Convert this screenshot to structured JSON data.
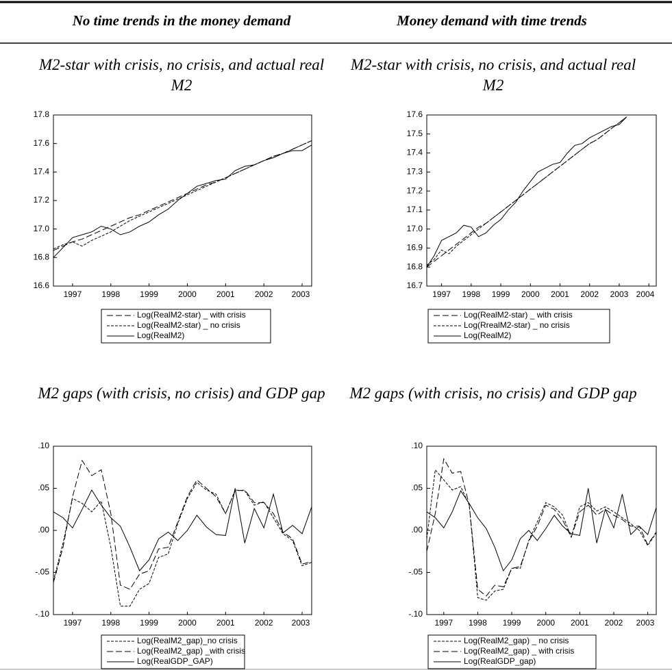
{
  "table": {
    "headers": [
      "No time trends in the money demand",
      "Money demand with time trends"
    ]
  },
  "chart_data": [
    {
      "type": "line",
      "title": "M2-star with crisis, no crisis, and actual real M2",
      "x": [
        1997,
        1997.25,
        1997.5,
        1997.75,
        1998,
        1998.25,
        1998.5,
        1998.75,
        1999,
        1999.25,
        1999.5,
        1999.75,
        2000,
        2000.25,
        2000.5,
        2000.75,
        2001,
        2001.25,
        2001.5,
        2001.75,
        2002,
        2002.25,
        2002.5,
        2002.75,
        2003,
        2003.25,
        2003.5,
        2003.75
      ],
      "xlim": [
        1997,
        2003.75
      ],
      "xticks": [
        {
          "value": 1997.5,
          "label": "1997"
        },
        {
          "value": 1998.5,
          "label": "1998"
        },
        {
          "value": 1999.5,
          "label": "1999"
        },
        {
          "value": 2000.5,
          "label": "2000"
        },
        {
          "value": 2001.5,
          "label": "2001"
        },
        {
          "value": 2002.5,
          "label": "2002"
        },
        {
          "value": 2003.5,
          "label": "2003"
        }
      ],
      "ylim": [
        16.6,
        17.8
      ],
      "yticks": [
        16.6,
        16.8,
        {
          "value": 17,
          "label": "17.0"
        },
        17.2,
        17.4,
        17.6,
        17.8
      ],
      "series": [
        {
          "name": "Log(RealM2-star) _ with crisis",
          "color": "#000000",
          "dash": "long",
          "values": [
            16.85,
            16.88,
            16.91,
            16.93,
            16.96,
            16.99,
            17.02,
            17.05,
            17.08,
            17.1,
            17.13,
            17.16,
            17.19,
            17.22,
            17.25,
            17.28,
            17.31,
            17.33,
            17.36,
            17.39,
            17.42,
            17.45,
            17.48,
            17.51,
            17.53,
            17.56,
            17.59,
            17.62
          ]
        },
        {
          "name": "Log(RealM2-star) _ no crisis",
          "color": "#000000",
          "dash": "short",
          "values": [
            16.86,
            16.89,
            16.91,
            16.88,
            16.92,
            16.95,
            16.98,
            17.02,
            17.06,
            17.09,
            17.12,
            17.15,
            17.18,
            17.21,
            17.24,
            17.27,
            17.3,
            17.33,
            17.36,
            17.39,
            17.42,
            17.45,
            17.48,
            17.51,
            17.53,
            17.56,
            17.59,
            17.62
          ]
        },
        {
          "name": "Log(RealM2)",
          "color": "#000000",
          "dash": "solid",
          "values": [
            16.8,
            16.87,
            16.94,
            16.96,
            16.98,
            17.02,
            17.0,
            16.96,
            16.98,
            17.02,
            17.05,
            17.1,
            17.14,
            17.2,
            17.25,
            17.3,
            17.32,
            17.34,
            17.35,
            17.41,
            17.44,
            17.45,
            17.48,
            17.5,
            17.53,
            17.55,
            17.55,
            17.59
          ]
        }
      ]
    },
    {
      "type": "line",
      "title": "M2-star with crisis, no crisis, and actual real M2",
      "x": [
        1997,
        1997.25,
        1997.5,
        1997.75,
        1998,
        1998.25,
        1998.5,
        1998.75,
        1999,
        1999.25,
        1999.5,
        1999.75,
        2000,
        2000.25,
        2000.5,
        2000.75,
        2001,
        2001.25,
        2001.5,
        2001.75,
        2002,
        2002.25,
        2002.5,
        2002.75,
        2003,
        2003.25,
        2003.5,
        2003.75
      ],
      "xlim": [
        1997,
        2004.75
      ],
      "xticks": [
        {
          "value": 1997.5,
          "label": "1997"
        },
        {
          "value": 1998.5,
          "label": "1998"
        },
        {
          "value": 1999.5,
          "label": "1999"
        },
        {
          "value": 2000.5,
          "label": "2000"
        },
        {
          "value": 2001.5,
          "label": "2001"
        },
        {
          "value": 2002.5,
          "label": "2002"
        },
        {
          "value": 2003.5,
          "label": "2003"
        },
        {
          "value": 2004.5,
          "label": "2004"
        }
      ],
      "ylim": [
        16.7,
        17.6
      ],
      "yticks": [
        16.7,
        16.8,
        16.9,
        {
          "value": 17,
          "label": "17.0"
        },
        17.1,
        17.2,
        17.3,
        17.4,
        17.5,
        17.6
      ],
      "series": [
        {
          "name": "Log(RealM2-star) _  with crisis",
          "color": "#000000",
          "dash": "long",
          "values": [
            16.8,
            16.83,
            16.86,
            16.89,
            16.92,
            16.95,
            16.98,
            17.01,
            17.03,
            17.06,
            17.09,
            17.12,
            17.15,
            17.18,
            17.21,
            17.24,
            17.27,
            17.3,
            17.33,
            17.36,
            17.39,
            17.42,
            17.45,
            17.47,
            17.5,
            17.53,
            17.56,
            17.59
          ]
        },
        {
          "name": "Log(RrealM2-star) _ no crisis",
          "color": "#000000",
          "dash": "short",
          "values": [
            16.81,
            16.84,
            16.89,
            16.87,
            16.91,
            16.94,
            16.97,
            17.0,
            17.03,
            17.06,
            17.09,
            17.12,
            17.15,
            17.18,
            17.21,
            17.24,
            17.27,
            17.3,
            17.33,
            17.36,
            17.39,
            17.42,
            17.45,
            17.47,
            17.5,
            17.53,
            17.56,
            17.59
          ]
        },
        {
          "name": "Log(RealM2)",
          "color": "#000000",
          "dash": "solid",
          "values": [
            16.8,
            16.86,
            16.94,
            16.96,
            16.98,
            17.02,
            17.01,
            16.96,
            16.98,
            17.02,
            17.05,
            17.1,
            17.14,
            17.2,
            17.25,
            17.3,
            17.32,
            17.34,
            17.35,
            17.4,
            17.44,
            17.45,
            17.48,
            17.5,
            17.52,
            17.54,
            17.55,
            17.59
          ]
        }
      ]
    },
    {
      "type": "line",
      "title": "M2 gaps (with crisis, no crisis) and GDP gap",
      "x": [
        1997,
        1997.25,
        1997.5,
        1997.75,
        1998,
        1998.25,
        1998.5,
        1998.75,
        1999,
        1999.25,
        1999.5,
        1999.75,
        2000,
        2000.25,
        2000.5,
        2000.75,
        2001,
        2001.25,
        2001.5,
        2001.75,
        2002,
        2002.25,
        2002.5,
        2002.75,
        2003,
        2003.25,
        2003.5,
        2003.75
      ],
      "xlim": [
        1997,
        2003.75
      ],
      "xticks": [
        {
          "value": 1997.5,
          "label": "1997"
        },
        {
          "value": 1998.5,
          "label": "1998"
        },
        {
          "value": 1999.5,
          "label": "1999"
        },
        {
          "value": 2000.5,
          "label": "2000"
        },
        {
          "value": 2001.5,
          "label": "2001"
        },
        {
          "value": 2002.5,
          "label": "2002"
        },
        {
          "value": 2003.5,
          "label": "2003"
        }
      ],
      "ylim": [
        -0.1,
        0.1
      ],
      "yticks": [
        {
          "value": -0.1,
          "label": "-.10"
        },
        {
          "value": -0.05,
          "label": "-.05"
        },
        {
          "value": 0,
          "label": ".00"
        },
        {
          "value": 0.05,
          "label": ".05"
        },
        {
          "value": 0.1,
          "label": ".10"
        }
      ],
      "series": [
        {
          "name": "Log(RealM2_gap)_no crisis",
          "color": "#000000",
          "dash": "short",
          "values": [
            -0.06,
            -0.015,
            0.038,
            0.032,
            0.022,
            0.035,
            -0.02,
            -0.09,
            -0.09,
            -0.07,
            -0.063,
            -0.032,
            -0.028,
            0.008,
            0.038,
            0.057,
            0.048,
            0.043,
            0.02,
            0.048,
            0.047,
            0.03,
            0.034,
            0.015,
            -0.004,
            -0.012,
            -0.042,
            -0.038
          ]
        },
        {
          "name": "Log(RealM2_gap) _with crisis",
          "color": "#000000",
          "dash": "long",
          "values": [
            -0.062,
            -0.02,
            0.04,
            0.083,
            0.065,
            0.072,
            0.02,
            -0.065,
            -0.07,
            -0.052,
            -0.048,
            -0.022,
            -0.02,
            0.01,
            0.04,
            0.06,
            0.05,
            0.04,
            0.02,
            0.047,
            0.048,
            0.033,
            0.033,
            0.02,
            -0.002,
            -0.01,
            -0.04,
            -0.037
          ]
        },
        {
          "name": "Log(RealGDP_GAP)",
          "color": "#000000",
          "dash": "solid",
          "values": [
            0.022,
            0.015,
            0.003,
            0.025,
            0.048,
            0.03,
            0.015,
            0.005,
            -0.02,
            -0.048,
            -0.035,
            -0.01,
            -0.002,
            -0.012,
            0.0,
            0.018,
            0.004,
            -0.005,
            -0.006,
            0.05,
            -0.015,
            0.026,
            0.003,
            0.043,
            -0.003,
            0.006,
            -0.004,
            0.028
          ]
        }
      ]
    },
    {
      "type": "line",
      "title": "M2 gaps (with crisis, no crisis) and GDP gap",
      "x": [
        1997,
        1997.25,
        1997.5,
        1997.75,
        1998,
        1998.25,
        1998.5,
        1998.75,
        1999,
        1999.25,
        1999.5,
        1999.75,
        2000,
        2000.25,
        2000.5,
        2000.75,
        2001,
        2001.25,
        2001.5,
        2001.75,
        2002,
        2002.25,
        2002.5,
        2002.75,
        2003,
        2003.25,
        2003.5,
        2003.75
      ],
      "xlim": [
        1997,
        2003.75
      ],
      "xticks": [
        {
          "value": 1997.5,
          "label": "1997"
        },
        {
          "value": 1998.5,
          "label": "1998"
        },
        {
          "value": 1999.5,
          "label": "1999"
        },
        {
          "value": 2000.5,
          "label": "2000"
        },
        {
          "value": 2001.5,
          "label": "2001"
        },
        {
          "value": 2002.5,
          "label": "2002"
        },
        {
          "value": 2003.5,
          "label": "2003"
        }
      ],
      "ylim": [
        -0.1,
        0.1
      ],
      "yticks": [
        {
          "value": -0.1,
          "label": "-.10"
        },
        {
          "value": -0.05,
          "label": "-.05"
        },
        {
          "value": 0,
          "label": ".00"
        },
        {
          "value": 0.05,
          "label": ".05"
        },
        {
          "value": 0.1,
          "label": ".10"
        }
      ],
      "series": [
        {
          "name": "Log(RealM2_gap) _ no crisis",
          "color": "#000000",
          "dash": "short",
          "values": [
            -0.01,
            0.072,
            0.06,
            0.048,
            0.052,
            0.03,
            -0.08,
            -0.083,
            -0.072,
            -0.07,
            -0.045,
            -0.045,
            -0.012,
            0.01,
            0.033,
            0.028,
            0.018,
            -0.008,
            0.028,
            0.033,
            0.023,
            0.028,
            0.022,
            0.015,
            0.008,
            0.0,
            -0.018,
            -0.003
          ]
        },
        {
          "name": "Log(RealM2_gap) _ with crisis",
          "color": "#000000",
          "dash": "long",
          "values": [
            -0.025,
            0.02,
            0.085,
            0.068,
            0.07,
            0.03,
            -0.07,
            -0.078,
            -0.065,
            -0.067,
            -0.045,
            -0.043,
            -0.013,
            0.005,
            0.03,
            0.025,
            0.012,
            -0.008,
            0.022,
            0.03,
            0.018,
            0.025,
            0.018,
            0.013,
            0.005,
            0.005,
            -0.017,
            -0.002
          ]
        },
        {
          "name": "Log(RealGDP_gap)",
          "color": "#000000",
          "dash": "solid",
          "values": [
            0.022,
            0.015,
            0.003,
            0.022,
            0.047,
            0.032,
            0.015,
            0.002,
            -0.02,
            -0.048,
            -0.035,
            -0.01,
            0.0,
            -0.012,
            0.002,
            0.018,
            0.005,
            -0.004,
            -0.006,
            0.05,
            -0.015,
            0.025,
            0.003,
            0.043,
            -0.005,
            0.005,
            -0.005,
            0.027
          ]
        }
      ]
    }
  ]
}
